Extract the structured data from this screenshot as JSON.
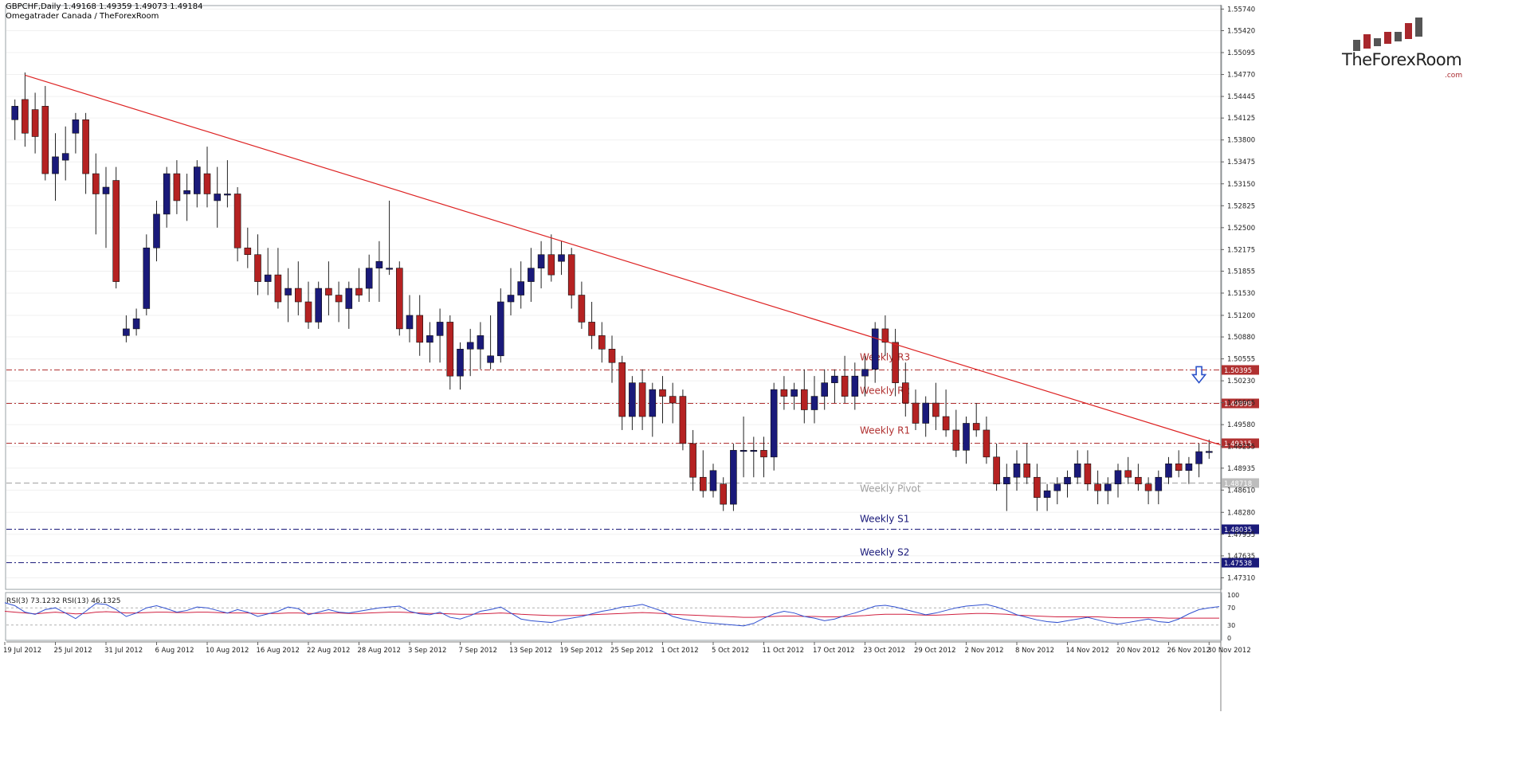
{
  "header": {
    "symbol_line": "GBPCHF,Daily  1.49168 1.49359 1.49073 1.49184",
    "source_line": "Omegatrader Canada / TheForexRoom"
  },
  "logo": {
    "brand": "TheForexRoom",
    "suffix": ".com",
    "bar_colors": [
      "#555555",
      "#a8272c"
    ]
  },
  "indicator": {
    "label": "RSI(3) 73.1232  RSI(13) 46.1325",
    "levels": [
      "100",
      "70",
      "30",
      "0"
    ],
    "level_values": [
      100,
      70,
      30,
      0
    ]
  },
  "colors": {
    "bull": "#1a1a7a",
    "bear": "#b52222",
    "trendline": "#dd2222",
    "resistance": "#b03030",
    "support": "#1a1a7a",
    "pivot": "#a0a0a0",
    "rsi_fast": "#3050d0",
    "rsi_slow": "#d02040"
  },
  "chart_data": {
    "type": "candlestick",
    "symbol": "GBPCHF",
    "timeframe": "Daily",
    "ylim": [
      1.4715,
      1.5578
    ],
    "y_ticks": [
      "1.55740",
      "1.55420",
      "1.55095",
      "1.54770",
      "1.54445",
      "1.54125",
      "1.53800",
      "1.53475",
      "1.53150",
      "1.52825",
      "1.52500",
      "1.52175",
      "1.51855",
      "1.51530",
      "1.51200",
      "1.50880",
      "1.50555",
      "1.50230",
      "1.49905",
      "1.49580",
      "1.49255",
      "1.48935",
      "1.48610",
      "1.48280",
      "1.47955",
      "1.47635",
      "1.47310"
    ],
    "x_tick_labels": [
      {
        "label": "19 Jul 2012",
        "index": 0
      },
      {
        "label": "25 Jul 2012",
        "index": 5
      },
      {
        "label": "31 Jul 2012",
        "index": 10
      },
      {
        "label": "6 Aug 2012",
        "index": 15
      },
      {
        "label": "10 Aug 2012",
        "index": 20
      },
      {
        "label": "16 Aug 2012",
        "index": 25
      },
      {
        "label": "22 Aug 2012",
        "index": 30
      },
      {
        "label": "28 Aug 2012",
        "index": 35
      },
      {
        "label": "3 Sep 2012",
        "index": 40
      },
      {
        "label": "7 Sep 2012",
        "index": 45
      },
      {
        "label": "13 Sep 2012",
        "index": 50
      },
      {
        "label": "19 Sep 2012",
        "index": 55
      },
      {
        "label": "25 Sep 2012",
        "index": 60
      },
      {
        "label": "1 Oct 2012",
        "index": 65
      },
      {
        "label": "5 Oct 2012",
        "index": 70
      },
      {
        "label": "11 Oct 2012",
        "index": 75
      },
      {
        "label": "17 Oct 2012",
        "index": 80
      },
      {
        "label": "23 Oct 2012",
        "index": 85
      },
      {
        "label": "29 Oct 2012",
        "index": 90
      },
      {
        "label": "2 Nov 2012",
        "index": 95
      },
      {
        "label": "8 Nov 2012",
        "index": 100
      },
      {
        "label": "14 Nov 2012",
        "index": 105
      },
      {
        "label": "20 Nov 2012",
        "index": 110
      },
      {
        "label": "26 Nov 2012",
        "index": 115
      },
      {
        "label": "30 Nov 2012",
        "index": 119
      }
    ],
    "candles": [
      [
        1.54,
        1.542,
        1.53,
        1.534
      ],
      [
        1.541,
        1.544,
        1.538,
        1.543
      ],
      [
        1.544,
        1.548,
        1.537,
        1.539
      ],
      [
        1.5425,
        1.545,
        1.536,
        1.5385
      ],
      [
        1.543,
        1.546,
        1.532,
        1.533
      ],
      [
        1.533,
        1.539,
        1.529,
        1.5355
      ],
      [
        1.535,
        1.54,
        1.532,
        1.536
      ],
      [
        1.539,
        1.542,
        1.536,
        1.541
      ],
      [
        1.541,
        1.542,
        1.53,
        1.533
      ],
      [
        1.533,
        1.536,
        1.524,
        1.53
      ],
      [
        1.53,
        1.534,
        1.522,
        1.531
      ],
      [
        1.532,
        1.534,
        1.516,
        1.517
      ],
      [
        1.509,
        1.512,
        1.508,
        1.51
      ],
      [
        1.51,
        1.513,
        1.509,
        1.5115
      ],
      [
        1.513,
        1.524,
        1.512,
        1.522
      ],
      [
        1.522,
        1.529,
        1.52,
        1.527
      ],
      [
        1.527,
        1.534,
        1.525,
        1.533
      ],
      [
        1.533,
        1.535,
        1.527,
        1.529
      ],
      [
        1.53,
        1.533,
        1.526,
        1.5305
      ],
      [
        1.53,
        1.535,
        1.528,
        1.534
      ],
      [
        1.533,
        1.537,
        1.528,
        1.53
      ],
      [
        1.529,
        1.534,
        1.525,
        1.53
      ],
      [
        1.53,
        1.535,
        1.528,
        1.53
      ],
      [
        1.53,
        1.531,
        1.52,
        1.522
      ],
      [
        1.522,
        1.525,
        1.519,
        1.521
      ],
      [
        1.521,
        1.524,
        1.515,
        1.517
      ],
      [
        1.517,
        1.522,
        1.515,
        1.518
      ],
      [
        1.518,
        1.522,
        1.513,
        1.514
      ],
      [
        1.515,
        1.519,
        1.511,
        1.516
      ],
      [
        1.516,
        1.52,
        1.512,
        1.514
      ],
      [
        1.514,
        1.517,
        1.51,
        1.511
      ],
      [
        1.511,
        1.517,
        1.51,
        1.516
      ],
      [
        1.516,
        1.52,
        1.512,
        1.515
      ],
      [
        1.515,
        1.517,
        1.511,
        1.514
      ],
      [
        1.513,
        1.517,
        1.51,
        1.516
      ],
      [
        1.516,
        1.519,
        1.514,
        1.515
      ],
      [
        1.516,
        1.521,
        1.514,
        1.519
      ],
      [
        1.519,
        1.523,
        1.514,
        1.52
      ],
      [
        1.519,
        1.529,
        1.518,
        1.519
      ],
      [
        1.519,
        1.52,
        1.509,
        1.51
      ],
      [
        1.51,
        1.515,
        1.508,
        1.512
      ],
      [
        1.512,
        1.515,
        1.506,
        1.508
      ],
      [
        1.508,
        1.511,
        1.505,
        1.509
      ],
      [
        1.509,
        1.513,
        1.505,
        1.511
      ],
      [
        1.511,
        1.512,
        1.501,
        1.503
      ],
      [
        1.503,
        1.508,
        1.501,
        1.507
      ],
      [
        1.507,
        1.51,
        1.503,
        1.508
      ],
      [
        1.507,
        1.511,
        1.504,
        1.509
      ],
      [
        1.505,
        1.512,
        1.504,
        1.506
      ],
      [
        1.506,
        1.516,
        1.505,
        1.514
      ],
      [
        1.514,
        1.519,
        1.512,
        1.515
      ],
      [
        1.515,
        1.52,
        1.513,
        1.517
      ],
      [
        1.517,
        1.522,
        1.514,
        1.519
      ],
      [
        1.519,
        1.523,
        1.516,
        1.521
      ],
      [
        1.521,
        1.524,
        1.517,
        1.518
      ],
      [
        1.52,
        1.523,
        1.518,
        1.521
      ],
      [
        1.521,
        1.522,
        1.513,
        1.515
      ],
      [
        1.515,
        1.517,
        1.51,
        1.511
      ],
      [
        1.511,
        1.514,
        1.507,
        1.509
      ],
      [
        1.509,
        1.511,
        1.505,
        1.507
      ],
      [
        1.507,
        1.509,
        1.502,
        1.505
      ],
      [
        1.505,
        1.506,
        1.495,
        1.497
      ],
      [
        1.497,
        1.503,
        1.495,
        1.502
      ],
      [
        1.502,
        1.504,
        1.495,
        1.497
      ],
      [
        1.497,
        1.502,
        1.494,
        1.501
      ],
      [
        1.501,
        1.503,
        1.496,
        1.5
      ],
      [
        1.5,
        1.502,
        1.496,
        1.499
      ],
      [
        1.5,
        1.501,
        1.492,
        1.493
      ],
      [
        1.493,
        1.495,
        1.486,
        1.488
      ],
      [
        1.488,
        1.492,
        1.485,
        1.486
      ],
      [
        1.486,
        1.49,
        1.485,
        1.489
      ],
      [
        1.487,
        1.488,
        1.483,
        1.484
      ],
      [
        1.484,
        1.493,
        1.483,
        1.492
      ],
      [
        1.492,
        1.497,
        1.488,
        1.492
      ],
      [
        1.492,
        1.494,
        1.488,
        1.492
      ],
      [
        1.492,
        1.494,
        1.488,
        1.491
      ],
      [
        1.491,
        1.502,
        1.489,
        1.501
      ],
      [
        1.501,
        1.503,
        1.498,
        1.5
      ],
      [
        1.5,
        1.502,
        1.498,
        1.501
      ],
      [
        1.501,
        1.504,
        1.496,
        1.498
      ],
      [
        1.498,
        1.503,
        1.496,
        1.5
      ],
      [
        1.5,
        1.504,
        1.498,
        1.502
      ],
      [
        1.502,
        1.504,
        1.499,
        1.503
      ],
      [
        1.503,
        1.506,
        1.499,
        1.5
      ],
      [
        1.5,
        1.505,
        1.498,
        1.503
      ],
      [
        1.503,
        1.506,
        1.5,
        1.504
      ],
      [
        1.504,
        1.511,
        1.502,
        1.51
      ],
      [
        1.51,
        1.512,
        1.506,
        1.508
      ],
      [
        1.508,
        1.51,
        1.5,
        1.502
      ],
      [
        1.502,
        1.505,
        1.497,
        1.499
      ],
      [
        1.499,
        1.501,
        1.495,
        1.496
      ],
      [
        1.496,
        1.5,
        1.494,
        1.499
      ],
      [
        1.499,
        1.502,
        1.495,
        1.497
      ],
      [
        1.497,
        1.501,
        1.494,
        1.495
      ],
      [
        1.495,
        1.498,
        1.491,
        1.492
      ],
      [
        1.492,
        1.497,
        1.49,
        1.496
      ],
      [
        1.496,
        1.499,
        1.494,
        1.495
      ],
      [
        1.495,
        1.497,
        1.49,
        1.491
      ],
      [
        1.491,
        1.493,
        1.486,
        1.487
      ],
      [
        1.487,
        1.49,
        1.483,
        1.488
      ],
      [
        1.488,
        1.492,
        1.486,
        1.49
      ],
      [
        1.49,
        1.493,
        1.487,
        1.488
      ],
      [
        1.488,
        1.49,
        1.483,
        1.485
      ],
      [
        1.485,
        1.487,
        1.483,
        1.486
      ],
      [
        1.486,
        1.488,
        1.484,
        1.487
      ],
      [
        1.487,
        1.489,
        1.485,
        1.488
      ],
      [
        1.488,
        1.492,
        1.487,
        1.49
      ],
      [
        1.49,
        1.492,
        1.486,
        1.487
      ],
      [
        1.487,
        1.489,
        1.484,
        1.486
      ],
      [
        1.486,
        1.488,
        1.484,
        1.487
      ],
      [
        1.487,
        1.49,
        1.485,
        1.489
      ],
      [
        1.489,
        1.491,
        1.487,
        1.488
      ],
      [
        1.488,
        1.49,
        1.486,
        1.487
      ],
      [
        1.487,
        1.488,
        1.484,
        1.486
      ],
      [
        1.486,
        1.489,
        1.484,
        1.488
      ],
      [
        1.488,
        1.491,
        1.487,
        1.49
      ],
      [
        1.49,
        1.492,
        1.488,
        1.489
      ],
      [
        1.489,
        1.491,
        1.487,
        1.49
      ],
      [
        1.49,
        1.493,
        1.488,
        1.4918
      ],
      [
        1.49168,
        1.49359,
        1.49073,
        1.49184
      ]
    ],
    "horizontal_levels": [
      {
        "name": "Weekly R3",
        "value": 1.50395,
        "label": "1.50395",
        "kind": "resistance",
        "style": "dashdot"
      },
      {
        "name": "Weekly R2",
        "value": 1.49898,
        "label": "1.49898",
        "kind": "resistance",
        "style": "dashdot"
      },
      {
        "name": "Weekly R1",
        "value": 1.49315,
        "label": "1.49315",
        "kind": "resistance",
        "style": "dashdot"
      },
      {
        "name": "Weekly Pivot",
        "value": 1.48718,
        "label": "1.48718",
        "kind": "pivot",
        "style": "dashed"
      },
      {
        "name": "Weekly S1",
        "value": 1.48035,
        "label": "1.48035",
        "kind": "support",
        "style": "dashdot"
      },
      {
        "name": "Weekly S2",
        "value": 1.47538,
        "label": "1.47538",
        "kind": "support",
        "style": "dashdot"
      }
    ],
    "trendline": {
      "from": {
        "index": 2,
        "price": 1.5476
      },
      "to": {
        "index": 124,
        "price": 1.491
      }
    },
    "annotations": [
      {
        "type": "down-arrow",
        "index": 118,
        "price": 1.5032
      }
    ],
    "rsi": {
      "rsi3": [
        82,
        75,
        60,
        55,
        66,
        70,
        58,
        45,
        62,
        80,
        78,
        66,
        50,
        58,
        70,
        75,
        68,
        60,
        64,
        72,
        70,
        64,
        58,
        66,
        60,
        50,
        56,
        62,
        72,
        68,
        54,
        60,
        66,
        60,
        58,
        62,
        66,
        70,
        72,
        74,
        62,
        56,
        54,
        60,
        48,
        44,
        52,
        62,
        66,
        72,
        58,
        44,
        40,
        38,
        36,
        42,
        46,
        50,
        56,
        62,
        66,
        72,
        74,
        78,
        70,
        62,
        50,
        44,
        40,
        36,
        34,
        32,
        30,
        28,
        34,
        46,
        56,
        62,
        58,
        50,
        46,
        40,
        44,
        52,
        58,
        66,
        74,
        76,
        72,
        66,
        60,
        54,
        58,
        64,
        70,
        74,
        76,
        78,
        72,
        64,
        54,
        48,
        42,
        38,
        36,
        40,
        44,
        48,
        42,
        36,
        32,
        36,
        40,
        44,
        38,
        36,
        44,
        56,
        66,
        70,
        73
      ],
      "rsi13": [
        62,
        60,
        58,
        56,
        58,
        60,
        58,
        56,
        57,
        60,
        61,
        60,
        58,
        58,
        59,
        60,
        60,
        59,
        59,
        60,
        60,
        59,
        58,
        58,
        58,
        57,
        57,
        57,
        58,
        58,
        57,
        57,
        58,
        58,
        57,
        57,
        58,
        59,
        60,
        60,
        59,
        58,
        57,
        57,
        56,
        55,
        55,
        56,
        57,
        58,
        57,
        55,
        54,
        53,
        52,
        52,
        52,
        53,
        54,
        55,
        56,
        57,
        58,
        59,
        58,
        57,
        55,
        54,
        53,
        52,
        51,
        50,
        49,
        48,
        48,
        49,
        50,
        51,
        51,
        50,
        50,
        49,
        49,
        50,
        51,
        52,
        54,
        55,
        55,
        55,
        54,
        53,
        53,
        54,
        55,
        56,
        57,
        57,
        56,
        55,
        53,
        52,
        51,
        50,
        49,
        49,
        49,
        49,
        49,
        48,
        47,
        47,
        47,
        47,
        47,
        46,
        46,
        46,
        46,
        46,
        46
      ]
    }
  }
}
